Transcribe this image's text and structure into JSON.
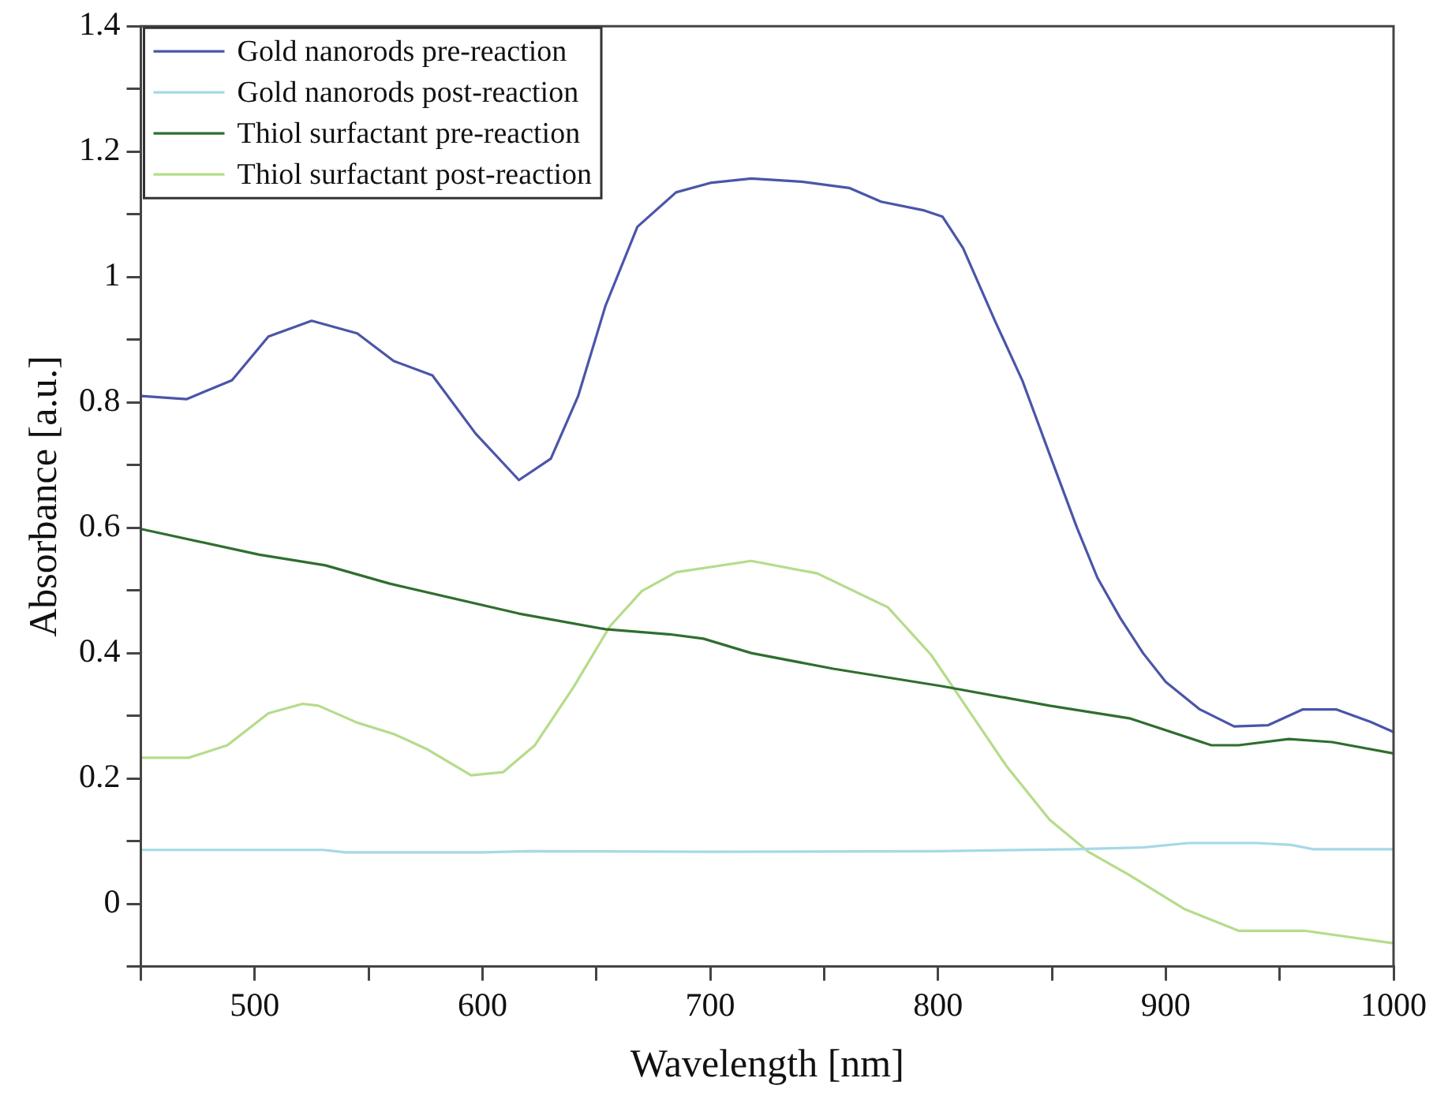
{
  "chart_data": {
    "type": "line",
    "xlabel": "Wavelength [nm]",
    "ylabel": "Absorbance [a.u.]",
    "xlim": [
      450,
      1000
    ],
    "ylim": [
      -0.1,
      1.4
    ],
    "xticks": [
      {
        "value": 450,
        "label": null
      },
      500,
      {
        "value": 550,
        "label": null
      },
      600,
      {
        "value": 650,
        "label": null
      },
      700,
      {
        "value": 750,
        "label": null
      },
      800,
      {
        "value": 850,
        "label": null
      },
      900,
      {
        "value": 950,
        "label": null
      },
      1000
    ],
    "yticks": [
      {
        "value": -0.1,
        "label": null
      },
      0,
      {
        "value": 0.1,
        "label": null
      },
      0.2,
      {
        "value": 0.3,
        "label": null
      },
      0.4,
      {
        "value": 0.5,
        "label": null
      },
      0.6,
      {
        "value": 0.7,
        "label": null
      },
      0.8,
      {
        "value": 0.9,
        "label": null
      },
      1,
      {
        "value": 1.1,
        "label": null
      },
      1.2,
      {
        "value": 1.3,
        "label": null
      },
      1.4
    ],
    "grid": false,
    "legend": "top left",
    "marker": "none",
    "line_style": "solid",
    "series": [
      {
        "name": "Gold nanorods pre-reaction",
        "color": "#4b55a8",
        "x": [
          450,
          470,
          490,
          506,
          525,
          545,
          561,
          578,
          597,
          616,
          630,
          642,
          654,
          668,
          685,
          700,
          718,
          740,
          761,
          775,
          794,
          802,
          811,
          825,
          837,
          849,
          861,
          870,
          880,
          890,
          900,
          915,
          930,
          945,
          960,
          975,
          990,
          1000
        ],
        "values": [
          0.81,
          0.805,
          0.835,
          0.905,
          0.93,
          0.91,
          0.866,
          0.843,
          0.75,
          0.676,
          0.71,
          0.81,
          0.954,
          1.08,
          1.135,
          1.15,
          1.157,
          1.152,
          1.142,
          1.12,
          1.106,
          1.096,
          1.046,
          0.93,
          0.835,
          0.717,
          0.6,
          0.52,
          0.456,
          0.4,
          0.354,
          0.31,
          0.283,
          0.285,
          0.31,
          0.31,
          0.29,
          0.274
        ]
      },
      {
        "name": "Gold nanorods post-reaction",
        "color": "#a6d8e6",
        "x": [
          450,
          530,
          540,
          600,
          620,
          700,
          800,
          860,
          890,
          910,
          940,
          955,
          965,
          1000
        ],
        "values": [
          0.086,
          0.086,
          0.082,
          0.082,
          0.084,
          0.083,
          0.084,
          0.087,
          0.09,
          0.097,
          0.097,
          0.094,
          0.087,
          0.087
        ]
      },
      {
        "name": "Thiol surfactant pre-reaction",
        "color": "#2f6e2f",
        "x": [
          450,
          502,
          531,
          559,
          616,
          654,
          682,
          697,
          718,
          754,
          802,
          849,
          884,
          920,
          932,
          954,
          973,
          1000
        ],
        "values": [
          0.598,
          0.557,
          0.54,
          0.511,
          0.463,
          0.438,
          0.43,
          0.423,
          0.4,
          0.375,
          0.347,
          0.316,
          0.296,
          0.253,
          0.253,
          0.263,
          0.258,
          0.24
        ]
      },
      {
        "name": "Thiol surfactant post-reaction",
        "color": "#b5dc8a",
        "x": [
          450,
          471,
          488,
          506,
          521,
          528,
          545,
          561,
          576,
          595,
          609,
          623,
          640,
          656,
          670,
          685,
          718,
          747,
          778,
          797,
          813,
          830,
          849,
          866,
          884,
          908,
          932,
          961,
          1000
        ],
        "values": [
          0.233,
          0.233,
          0.253,
          0.304,
          0.319,
          0.316,
          0.289,
          0.271,
          0.246,
          0.205,
          0.21,
          0.253,
          0.346,
          0.443,
          0.499,
          0.529,
          0.547,
          0.527,
          0.473,
          0.397,
          0.311,
          0.22,
          0.134,
          0.083,
          0.046,
          -0.008,
          -0.043,
          -0.043,
          -0.063
        ]
      }
    ]
  }
}
